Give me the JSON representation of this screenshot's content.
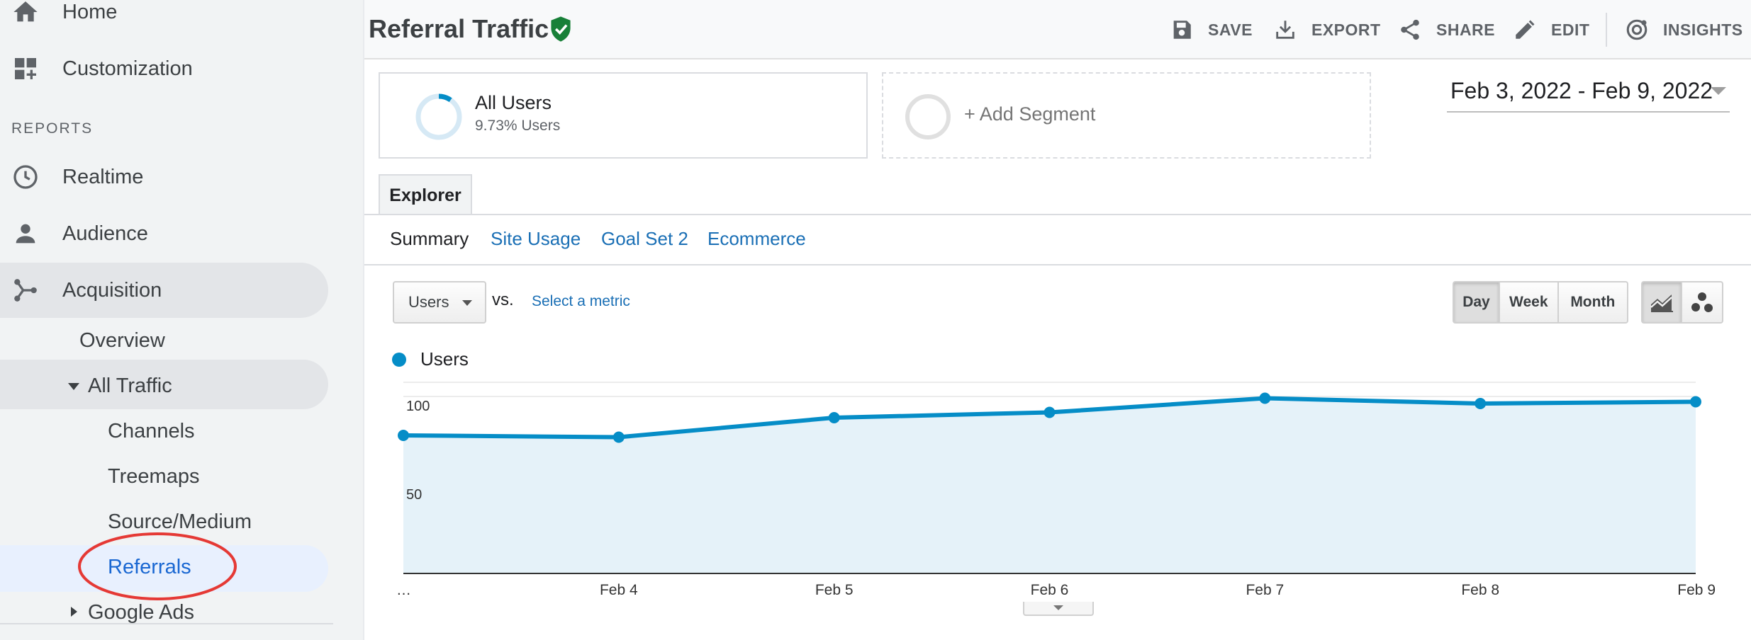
{
  "sidebar": {
    "home_label": "Home",
    "customization_label": "Customization",
    "reports_heading": "REPORTS",
    "realtime_label": "Realtime",
    "audience_label": "Audience",
    "acquisition_label": "Acquisition",
    "overview_label": "Overview",
    "all_traffic_label": "All Traffic",
    "channels_label": "Channels",
    "treemaps_label": "Treemaps",
    "source_medium_label": "Source/Medium",
    "referrals_label": "Referrals",
    "google_ads_label": "Google Ads",
    "selected_item": "Referrals",
    "highlight_color": "#e53935"
  },
  "header": {
    "title": "Referral Traffic",
    "verified_icon": "shield-check-icon",
    "tools": [
      {
        "label": "SAVE",
        "icon": "save-icon"
      },
      {
        "label": "EXPORT",
        "icon": "export-icon"
      },
      {
        "label": "SHARE",
        "icon": "share-icon"
      },
      {
        "label": "EDIT",
        "icon": "edit-icon"
      },
      {
        "label": "INSIGHTS",
        "icon": "insights-icon"
      }
    ]
  },
  "segments": {
    "all_users_name": "All Users",
    "all_users_pct": "9.73% Users",
    "all_users_fraction": 0.0973,
    "add_segment_label": "+ Add Segment"
  },
  "date_range": "Feb 3, 2022 - Feb 9, 2022",
  "explorer": {
    "tab_label": "Explorer",
    "subtabs": [
      "Summary",
      "Site Usage",
      "Goal Set 2",
      "Ecommerce"
    ],
    "active_subtab": "Summary"
  },
  "controls": {
    "metric_value": "Users",
    "vs_label": "vs.",
    "select_metric_label": "Select a metric",
    "periods": [
      "Day",
      "Week",
      "Month"
    ],
    "active_period": "Day",
    "chart_types": [
      "line-chart-icon",
      "motion-chart-icon"
    ],
    "active_chart_type": "line-chart-icon"
  },
  "colors": {
    "accent": "#058dc7",
    "link": "#1a6fb5",
    "area_fill": "#e5f2f9",
    "verified": "#188038"
  },
  "chart_data": {
    "type": "area",
    "legend": [
      "Users"
    ],
    "categories": [
      "…",
      "Feb 4",
      "Feb 5",
      "Feb 6",
      "Feb 7",
      "Feb 8",
      "Feb 9"
    ],
    "series": [
      {
        "name": "Users",
        "values": [
          78,
          77,
          88,
          91,
          99,
          96,
          97
        ]
      }
    ],
    "y_ticks": [
      100,
      50
    ],
    "ylim": [
      0,
      100
    ],
    "grid": true,
    "legend_placement": "top-left"
  }
}
